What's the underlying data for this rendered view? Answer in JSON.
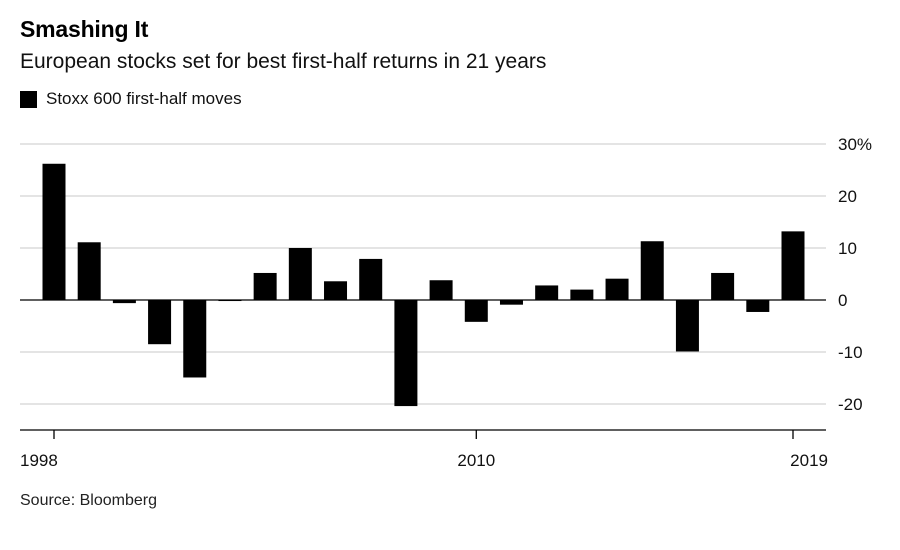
{
  "title": "Smashing It",
  "subtitle": "European stocks set for best first-half returns in 21 years",
  "legend": {
    "label": "Stoxx 600 first-half moves",
    "color": "#000000"
  },
  "source": "Source: Bloomberg",
  "chart_data": {
    "type": "bar",
    "categories": [
      "1998",
      "1999",
      "2000",
      "2001",
      "2002",
      "2003",
      "2004",
      "2005",
      "2006",
      "2007",
      "2008",
      "2009",
      "2010",
      "2011",
      "2012",
      "2013",
      "2014",
      "2015",
      "2016",
      "2017",
      "2018",
      "2019"
    ],
    "series": [
      {
        "name": "Stoxx 600 first-half moves",
        "values": [
          26.2,
          11.1,
          -0.6,
          -8.5,
          -14.9,
          -0.2,
          5.2,
          10.0,
          3.6,
          7.9,
          -20.4,
          3.8,
          -4.2,
          -0.9,
          2.8,
          2.0,
          4.1,
          11.3,
          -9.9,
          5.2,
          -2.3,
          13.2
        ]
      }
    ],
    "x_tick_labels": [
      "1998",
      "2010",
      "2019"
    ],
    "y_ticks": [
      -20,
      -10,
      0,
      10,
      20,
      30
    ],
    "y_tick_labels": [
      "-20",
      "-10",
      "0",
      "10",
      "20",
      "30%"
    ],
    "ylim": [
      -25,
      30
    ],
    "grid": true,
    "bar_color": "#000000",
    "grid_color": "#dcdcdc"
  }
}
